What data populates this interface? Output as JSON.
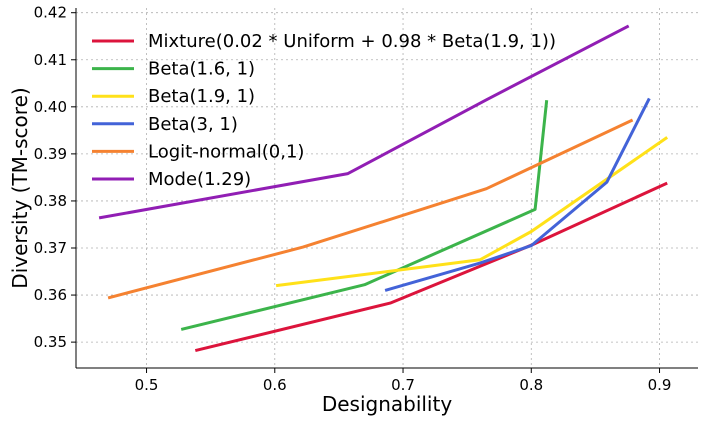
{
  "chart_data": {
    "type": "line",
    "xlabel": "Designability",
    "ylabel": "Diversity (TM-score)",
    "xlim": [
      0.445,
      0.93
    ],
    "ylim": [
      0.3445,
      0.421
    ],
    "xticks": [
      0.5,
      0.6,
      0.7,
      0.8,
      0.9
    ],
    "yticks": [
      0.35,
      0.36,
      0.37,
      0.38,
      0.39,
      0.4,
      0.41,
      0.42
    ],
    "xtick_labels": [
      "0.5",
      "0.6",
      "0.7",
      "0.8",
      "0.9"
    ],
    "ytick_labels": [
      "0.35",
      "0.36",
      "0.37",
      "0.38",
      "0.39",
      "0.40",
      "0.41",
      "0.42"
    ],
    "grid": true,
    "legend_position": "top-left",
    "series": [
      {
        "name": "Mixture(0.02 * Uniform + 0.98 * Beta(1.9, 1))",
        "color": "#dc143c",
        "x": [
          0.538,
          0.69,
          0.8,
          0.906
        ],
        "y": [
          0.3482,
          0.3583,
          0.3706,
          0.3838
        ]
      },
      {
        "name": "Beta(1.6, 1)",
        "color": "#3cb44b",
        "x": [
          0.527,
          0.67,
          0.803,
          0.812
        ],
        "y": [
          0.3527,
          0.3622,
          0.3782,
          0.4014
        ]
      },
      {
        "name": "Beta(1.9, 1)",
        "color": "#ffe119",
        "x": [
          0.601,
          0.76,
          0.8,
          0.906
        ],
        "y": [
          0.362,
          0.3675,
          0.3735,
          0.3935
        ]
      },
      {
        "name": "Beta(3, 1)",
        "color": "#4363d8",
        "x": [
          0.686,
          0.76,
          0.8,
          0.859,
          0.892
        ],
        "y": [
          0.361,
          0.3668,
          0.3705,
          0.384,
          0.4018
        ]
      },
      {
        "name": "Logit-normal(0,1)",
        "color": "#f58231",
        "x": [
          0.47,
          0.622,
          0.765,
          0.879
        ],
        "y": [
          0.3594,
          0.3702,
          0.3826,
          0.3972
        ]
      },
      {
        "name": "Mode(1.29)",
        "color": "#911eb4",
        "x": [
          0.463,
          0.657,
          0.765,
          0.876
        ],
        "y": [
          0.3764,
          0.3858,
          0.4015,
          0.4172
        ]
      }
    ]
  }
}
